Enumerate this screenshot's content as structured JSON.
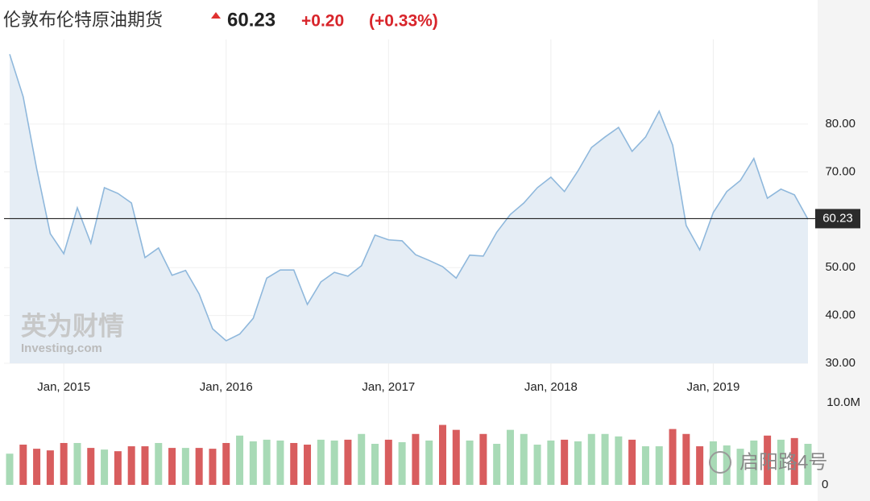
{
  "chart_data": {
    "type": "area",
    "title": "伦敦布伦特原油期货",
    "price": 60.23,
    "change": "+0.20",
    "change_pct": "(+0.33%)",
    "watermark": [
      "英为财情",
      "Investing.com"
    ],
    "corner_watermark": "启阳路4号",
    "color": "#8fb8dc",
    "fill": "#e5edf5",
    "grid": true,
    "x": [
      "2014-09",
      "2014-10",
      "2014-11",
      "2014-12",
      "2015-01",
      "2015-02",
      "2015-03",
      "2015-04",
      "2015-05",
      "2015-06",
      "2015-07",
      "2015-08",
      "2015-09",
      "2015-10",
      "2015-11",
      "2015-12",
      "2016-01",
      "2016-02",
      "2016-03",
      "2016-04",
      "2016-05",
      "2016-06",
      "2016-07",
      "2016-08",
      "2016-09",
      "2016-10",
      "2016-11",
      "2016-12",
      "2017-01",
      "2017-02",
      "2017-03",
      "2017-04",
      "2017-05",
      "2017-06",
      "2017-07",
      "2017-08",
      "2017-09",
      "2017-10",
      "2017-11",
      "2017-12",
      "2018-01",
      "2018-02",
      "2018-03",
      "2018-04",
      "2018-05",
      "2018-06",
      "2018-07",
      "2018-08",
      "2018-09",
      "2018-10",
      "2018-11",
      "2018-12",
      "2019-01",
      "2019-02",
      "2019-03",
      "2019-04",
      "2019-05",
      "2019-06",
      "2019-07",
      "2019-08"
    ],
    "values": [
      94.6,
      85.7,
      70.6,
      57.1,
      52.9,
      62.5,
      55.1,
      66.7,
      65.5,
      63.5,
      52.1,
      54.1,
      48.4,
      49.4,
      44.5,
      37.2,
      34.7,
      36.1,
      39.4,
      47.8,
      49.5,
      49.5,
      42.3,
      47.0,
      49.0,
      48.2,
      50.4,
      56.8,
      55.8,
      55.6,
      52.7,
      51.5,
      50.2,
      47.8,
      52.6,
      52.4,
      57.4,
      61.1,
      63.5,
      66.7,
      68.9,
      65.9,
      70.2,
      75.1,
      77.3,
      79.3,
      74.3,
      77.3,
      82.7,
      75.6,
      58.8,
      53.7,
      61.5,
      65.9,
      68.2,
      72.8,
      64.5,
      66.4,
      65.2,
      60.1
    ],
    "xlim": [
      "2014-09",
      "2019-08"
    ],
    "xticks": [
      {
        "value": "2015-01",
        "label": "Jan, 2015"
      },
      {
        "value": "2016-01",
        "label": "Jan, 2016"
      },
      {
        "value": "2017-01",
        "label": "Jan, 2017"
      },
      {
        "value": "2018-01",
        "label": "Jan, 2018"
      },
      {
        "value": "2019-01",
        "label": "Jan, 2019"
      }
    ],
    "ylim": [
      30,
      96
    ],
    "yticks": [
      {
        "value": 30,
        "label": "30.00"
      },
      {
        "value": 40,
        "label": "40.00"
      },
      {
        "value": 50,
        "label": "50.00"
      },
      {
        "value": 70,
        "label": "70.00"
      },
      {
        "value": 80,
        "label": "80.00"
      }
    ],
    "volume": {
      "values": [
        3800000,
        4900000,
        4400000,
        4200000,
        5100000,
        5100000,
        4500000,
        4300000,
        4100000,
        4700000,
        4700000,
        5100000,
        4500000,
        4500000,
        4500000,
        4400000,
        5100000,
        6000000,
        5300000,
        5500000,
        5400000,
        5100000,
        4900000,
        5500000,
        5400000,
        5500000,
        6200000,
        5000000,
        5500000,
        5200000,
        6200000,
        5400000,
        7300000,
        6700000,
        5400000,
        6200000,
        5000000,
        6700000,
        6200000,
        4900000,
        5400000,
        5500000,
        5300000,
        6200000,
        6200000,
        5900000,
        5500000,
        4700000,
        4700000,
        6800000,
        6200000,
        4700000,
        5300000,
        4800000,
        4400000,
        5400000,
        6000000,
        5500000,
        5700000,
        5000000
      ],
      "colors": [
        "#a8dab6",
        "#d85d5e",
        "#d85d5e",
        "#d85d5e",
        "#d85d5e",
        "#a8dab6",
        "#d85d5e",
        "#a8dab6",
        "#d85d5e",
        "#d85d5e",
        "#d85d5e",
        "#a8dab6",
        "#d85d5e",
        "#a8dab6",
        "#d85d5e",
        "#d85d5e",
        "#d85d5e",
        "#a8dab6",
        "#a8dab6",
        "#a8dab6",
        "#a8dab6",
        "#d85d5e",
        "#d85d5e",
        "#a8dab6",
        "#a8dab6",
        "#d85d5e",
        "#a8dab6",
        "#a8dab6",
        "#d85d5e",
        "#a8dab6",
        "#d85d5e",
        "#a8dab6",
        "#d85d5e",
        "#d85d5e",
        "#a8dab6",
        "#d85d5e",
        "#a8dab6",
        "#a8dab6",
        "#a8dab6",
        "#a8dab6",
        "#a8dab6",
        "#d85d5e",
        "#a8dab6",
        "#a8dab6",
        "#a8dab6",
        "#a8dab6",
        "#d85d5e",
        "#a8dab6",
        "#a8dab6",
        "#d85d5e",
        "#d85d5e",
        "#d85d5e",
        "#a8dab6",
        "#a8dab6",
        "#a8dab6",
        "#a8dab6",
        "#d85d5e",
        "#a8dab6",
        "#d85d5e",
        "#a8dab6"
      ],
      "ylim": [
        0,
        10000000
      ],
      "yticks": [
        {
          "value": 10000000,
          "label": "10.0M"
        },
        0
      ]
    }
  }
}
